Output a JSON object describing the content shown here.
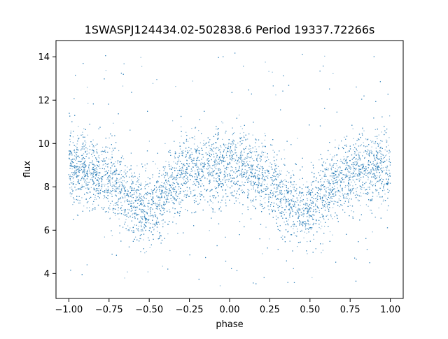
{
  "chart_data": {
    "type": "scatter",
    "title": "1SWASPJ124434.02-502838.6 Period 19337.72266s",
    "xlabel": "phase",
    "ylabel": "flux",
    "xlim": [
      -1.08,
      1.08
    ],
    "ylim": [
      2.85,
      14.75
    ],
    "x_ticks": [
      -1.0,
      -0.75,
      -0.5,
      -0.25,
      0.0,
      0.25,
      0.5,
      0.75,
      1.0
    ],
    "x_tick_labels": [
      "−1.00",
      "−0.75",
      "−0.50",
      "−0.25",
      "0.00",
      "0.25",
      "0.50",
      "0.75",
      "1.00"
    ],
    "y_ticks": [
      4,
      6,
      8,
      10,
      12,
      14
    ],
    "y_tick_labels": [
      "4",
      "6",
      "8",
      "10",
      "12",
      "14"
    ],
    "grid": false,
    "point_color": "#1f77b4",
    "series": [
      {
        "x_range": [
          -1.0,
          1.0
        ],
        "baseline_flux": 8.9,
        "core_spread": 0.85,
        "outlier_range": [
          3.4,
          14.3
        ],
        "dips": [
          {
            "phase": -0.52,
            "min_flux": 6.8
          },
          {
            "phase": 0.48,
            "min_flux": 6.8
          }
        ],
        "samples": [
          [
            -1.0,
            8.9
          ],
          [
            -0.9,
            8.8
          ],
          [
            -0.8,
            8.6
          ],
          [
            -0.7,
            8.1
          ],
          [
            -0.6,
            7.3
          ],
          [
            -0.52,
            6.8
          ],
          [
            -0.45,
            7.2
          ],
          [
            -0.35,
            8.2
          ],
          [
            -0.25,
            8.7
          ],
          [
            -0.1,
            8.9
          ],
          [
            0.0,
            8.9
          ],
          [
            0.1,
            8.8
          ],
          [
            0.2,
            8.5
          ],
          [
            0.3,
            8.0
          ],
          [
            0.4,
            7.2
          ],
          [
            0.48,
            6.8
          ],
          [
            0.55,
            7.2
          ],
          [
            0.65,
            8.1
          ],
          [
            0.75,
            8.6
          ],
          [
            0.9,
            8.9
          ],
          [
            1.0,
            8.9
          ]
        ]
      }
    ]
  }
}
